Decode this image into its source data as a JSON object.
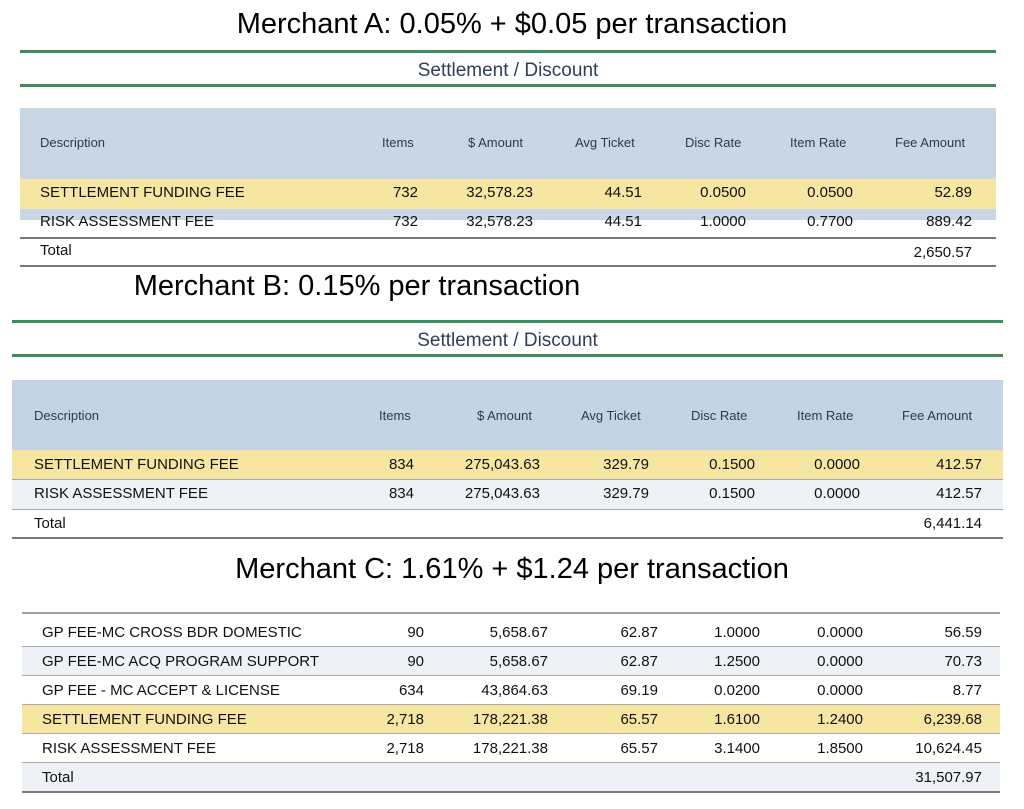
{
  "sections": [
    {
      "heading": "Merchant A: 0.05% + $0.05 per transaction",
      "panel_title": "Settlement / Discount",
      "columns": [
        "Description",
        "Items",
        "$ Amount",
        "Avg Ticket",
        "Disc Rate",
        "Item Rate",
        "Fee Amount"
      ],
      "rows": [
        {
          "description": "SETTLEMENT FUNDING FEE",
          "items": "732",
          "amount": "32,578.23",
          "avg_ticket": "44.51",
          "disc_rate": "0.0500",
          "item_rate": "0.0500",
          "fee": "52.89",
          "highlighted": true
        },
        {
          "description": "RISK ASSESSMENT FEE",
          "items": "732",
          "amount": "32,578.23",
          "avg_ticket": "44.51",
          "disc_rate": "1.0000",
          "item_rate": "0.7700",
          "fee": "889.42",
          "highlighted": false
        }
      ],
      "total_label": "Total",
      "total_value": "2,650.57"
    },
    {
      "heading": "Merchant B: 0.15% per transaction",
      "panel_title": "Settlement / Discount",
      "columns": [
        "Description",
        "Items",
        "$ Amount",
        "Avg Ticket",
        "Disc Rate",
        "Item Rate",
        "Fee Amount"
      ],
      "rows": [
        {
          "description": "SETTLEMENT FUNDING FEE",
          "items": "834",
          "amount": "275,043.63",
          "avg_ticket": "329.79",
          "disc_rate": "0.1500",
          "item_rate": "0.0000",
          "fee": "412.57",
          "highlighted": true
        },
        {
          "description": "RISK ASSESSMENT FEE",
          "items": "834",
          "amount": "275,043.63",
          "avg_ticket": "329.79",
          "disc_rate": "0.1500",
          "item_rate": "0.0000",
          "fee": "412.57",
          "highlighted": false
        }
      ],
      "total_label": "Total",
      "total_value": "6,441.14"
    },
    {
      "heading": "Merchant C: 1.61% + $1.24 per transaction",
      "rows": [
        {
          "description": "GP FEE-MC CROSS BDR DOMESTIC",
          "items": "90",
          "amount": "5,658.67",
          "avg_ticket": "62.87",
          "disc_rate": "1.0000",
          "item_rate": "0.0000",
          "fee": "56.59",
          "highlighted": false
        },
        {
          "description": "GP FEE-MC ACQ PROGRAM SUPPORT",
          "items": "90",
          "amount": "5,658.67",
          "avg_ticket": "62.87",
          "disc_rate": "1.2500",
          "item_rate": "0.0000",
          "fee": "70.73",
          "highlighted": false
        },
        {
          "description": "GP FEE - MC ACCEPT & LICENSE",
          "items": "634",
          "amount": "43,864.63",
          "avg_ticket": "69.19",
          "disc_rate": "0.0200",
          "item_rate": "0.0000",
          "fee": "8.77",
          "highlighted": false
        },
        {
          "description": "SETTLEMENT FUNDING FEE",
          "items": "2,718",
          "amount": "178,221.38",
          "avg_ticket": "65.57",
          "disc_rate": "1.6100",
          "item_rate": "1.2400",
          "fee": "6,239.68",
          "highlighted": true
        },
        {
          "description": "RISK ASSESSMENT FEE",
          "items": "2,718",
          "amount": "178,221.38",
          "avg_ticket": "65.57",
          "disc_rate": "3.1400",
          "item_rate": "1.8500",
          "fee": "10,624.45",
          "highlighted": false
        }
      ],
      "total_label": "Total",
      "total_value": "31,507.97"
    }
  ]
}
